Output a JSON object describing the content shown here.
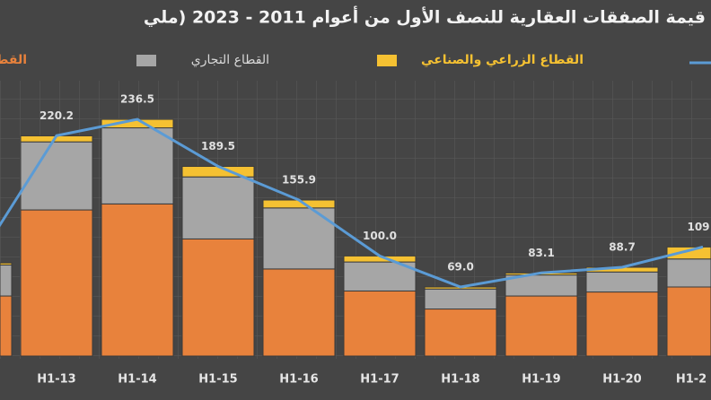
{
  "chart_data": {
    "type": "stacked-bar-line",
    "title": "قيمة الصفقات العقارية للنصف الأول من أعوام 2011 - 2023 (ملي",
    "categories": [
      null,
      "H1-13",
      "H1-14",
      "H1-15",
      "H1-16",
      "H1-17",
      "H1-18",
      "H1-19",
      "H1-20",
      "H1-2"
    ],
    "series": [
      {
        "name": "القط",
        "color": "#e8823c",
        "values": [
          60,
          146,
          152,
          117,
          87,
          65,
          47,
          60,
          64,
          69
        ]
      },
      {
        "name": "القطاع التجاري",
        "color": "#a6a6a6",
        "values": [
          31,
          68,
          76,
          62,
          61,
          29,
          20,
          21,
          20,
          28
        ]
      },
      {
        "name": "القطاع الزراعي والصناعي",
        "color": "#f5c132",
        "values": [
          2,
          6,
          8.5,
          10.5,
          7.9,
          6,
          2,
          2,
          4.7,
          12
        ]
      },
      {
        "type": "line",
        "color": "#5b9bd5",
        "values": [
          93,
          220.2,
          236.5,
          189.5,
          155.9,
          100,
          69,
          83.1,
          88.7,
          109
        ],
        "value_labels": [
          null,
          "220.2",
          "236.5",
          "189.5",
          "155.9",
          "100.0",
          "69.0",
          "83.1",
          "88.7",
          "109"
        ]
      }
    ]
  }
}
